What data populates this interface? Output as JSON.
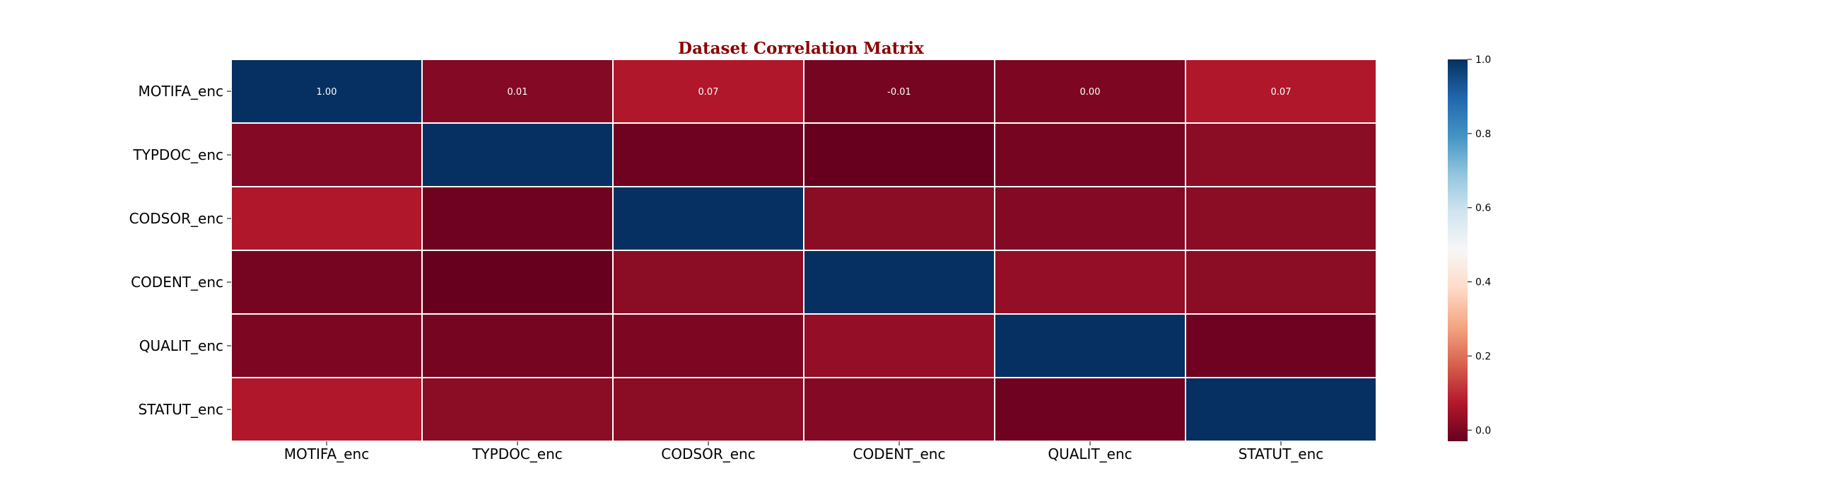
{
  "colors": {
    "title": "#8b0000",
    "cell_border": "#ffffff",
    "annotation_text": "#ffffff",
    "colormap": "RdBu"
  },
  "chart_data": {
    "type": "heatmap",
    "title": "Dataset Correlation Matrix",
    "rows": [
      "MOTIFA_enc",
      "TYPDOC_enc",
      "CODSOR_enc",
      "CODENT_enc",
      "QUALIT_enc",
      "STATUT_enc"
    ],
    "columns": [
      "MOTIFA_enc",
      "TYPDOC_enc",
      "CODSOR_enc",
      "CODENT_enc",
      "QUALIT_enc",
      "STATUT_enc"
    ],
    "values": [
      [
        1.0,
        0.01,
        0.07,
        -0.01,
        0.0,
        0.07
      ],
      [
        0.01,
        1.0,
        -0.02,
        -0.03,
        -0.01,
        0.02
      ],
      [
        0.07,
        -0.02,
        1.0,
        0.02,
        0.01,
        0.02
      ],
      [
        -0.01,
        -0.03,
        0.02,
        1.0,
        0.03,
        0.02
      ],
      [
        0.0,
        -0.01,
        0.0,
        0.03,
        1.0,
        -0.02
      ],
      [
        0.07,
        0.02,
        0.02,
        0.01,
        -0.02,
        1.0
      ]
    ],
    "annotated_cells": [
      {
        "row": 0,
        "col": 0,
        "text": "1.00"
      },
      {
        "row": 0,
        "col": 1,
        "text": "0.01"
      },
      {
        "row": 0,
        "col": 2,
        "text": "0.07"
      },
      {
        "row": 0,
        "col": 3,
        "text": "-0.01"
      },
      {
        "row": 0,
        "col": 4,
        "text": "0.00"
      },
      {
        "row": 0,
        "col": 5,
        "text": "0.07"
      }
    ],
    "colorbar": {
      "range": [
        -0.03,
        1.0
      ],
      "ticks": [
        "0.0",
        "0.2",
        "0.4",
        "0.6",
        "0.8",
        "1.0"
      ],
      "tick_values": [
        0.0,
        0.2,
        0.4,
        0.6,
        0.8,
        1.0
      ]
    },
    "grid": false,
    "legend": "colorbar-right"
  }
}
